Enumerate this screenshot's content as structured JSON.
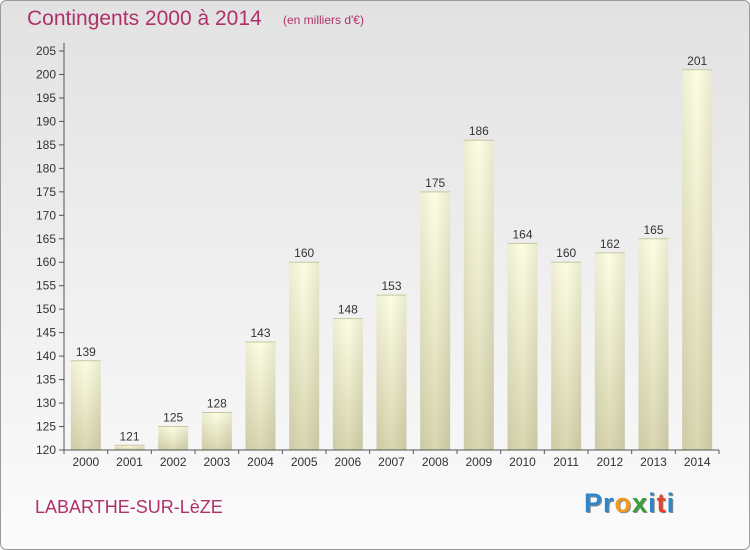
{
  "header": {
    "title": "Contingents 2000 à 2014",
    "subtitle": "(en milliers d'€)"
  },
  "footer": {
    "commune": "LABARTHE-SUR-LèZE"
  },
  "logo": {
    "text": "Proxiti",
    "letters": [
      {
        "ch": "P",
        "color": "#2f86c8"
      },
      {
        "ch": "r",
        "color": "#2f86c8"
      },
      {
        "ch": "o",
        "color": "#f29a1f"
      },
      {
        "ch": "x",
        "color": "#3a9e37"
      },
      {
        "ch": "i",
        "color": "#2f86c8"
      },
      {
        "ch": "t",
        "color": "#e8412a"
      },
      {
        "ch": "i",
        "color": "#2f86c8"
      }
    ]
  },
  "chart_data": {
    "type": "bar",
    "title": "Contingents 2000 à 2014",
    "subtitle": "(en milliers d'€)",
    "categories": [
      "2000",
      "2001",
      "2002",
      "2003",
      "2004",
      "2005",
      "2006",
      "2007",
      "2008",
      "2009",
      "2010",
      "2011",
      "2012",
      "2013",
      "2014"
    ],
    "values": [
      139,
      121,
      125,
      128,
      143,
      160,
      148,
      153,
      175,
      186,
      164,
      160,
      162,
      165,
      201
    ],
    "ylim": [
      120,
      205
    ],
    "yticks": [
      120,
      125,
      130,
      135,
      140,
      145,
      150,
      155,
      160,
      165,
      170,
      175,
      180,
      185,
      190,
      195,
      200,
      205
    ],
    "grid": false,
    "data_labels": true,
    "colors": {
      "bar_top": "#fdfde2",
      "bar_bottom": "#d9d7b0",
      "axis": "#555555",
      "label_text": "#333333",
      "title_text": "#b0306a"
    }
  }
}
